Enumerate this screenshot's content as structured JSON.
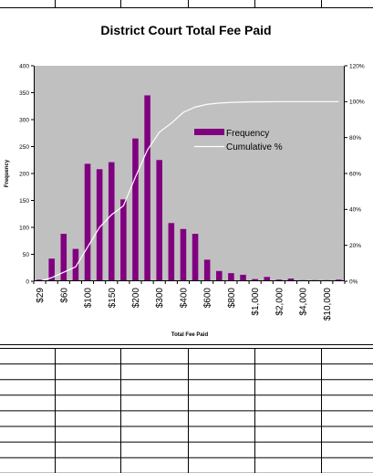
{
  "chart_data": {
    "type": "bar",
    "title": "District Court Total Fee Paid",
    "xlabel": "Total Fee Paid",
    "ylabel": "Frequency",
    "ylim": [
      0,
      400
    ],
    "y2lim": [
      0,
      120
    ],
    "yticks": [
      0,
      50,
      100,
      150,
      200,
      250,
      300,
      350,
      400
    ],
    "y2ticks": [
      "0%",
      "20%",
      "40%",
      "60%",
      "80%",
      "100%",
      "120%"
    ],
    "x_tick_labels": [
      "$29",
      "$60",
      "$100",
      "$150",
      "$200",
      "$300",
      "$400",
      "$600",
      "$800",
      "$1,000",
      "$2,000",
      "$4,000",
      "$10,000"
    ],
    "grid": false,
    "legend_position": "right",
    "colors": {
      "bar": "#800080",
      "cumulative": "#ffffff",
      "plot_bg": "#c0c0c0"
    },
    "series": [
      {
        "name": "Frequency",
        "type": "bar",
        "values": [
          3,
          42,
          88,
          60,
          218,
          208,
          221,
          152,
          265,
          345,
          225,
          108,
          97,
          88,
          40,
          19,
          15,
          12,
          4,
          8,
          3,
          5,
          2,
          2,
          2,
          3
        ]
      },
      {
        "name": "Cumulative %",
        "type": "line",
        "axis": "right",
        "values": [
          0,
          2,
          5,
          8,
          19,
          30,
          37,
          42,
          58,
          73,
          83,
          88,
          94,
          97,
          98.5,
          99.2,
          99.6,
          99.8,
          99.9,
          99.9,
          100,
          100,
          100,
          100,
          100,
          100
        ]
      }
    ]
  },
  "bottom_table": {
    "rows": 8,
    "columns": 6
  },
  "top_table": {
    "rows": 1,
    "columns": 6
  }
}
